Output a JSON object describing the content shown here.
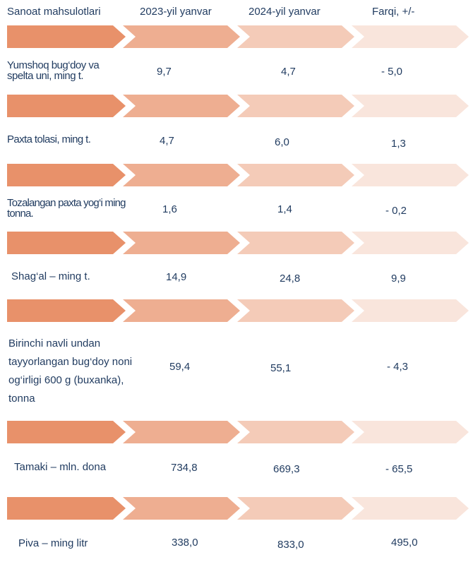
{
  "header": {
    "col1": "Sanoat mahsulotlari",
    "col2": "2023-yil yanvar",
    "col3": "2024-yil yanvar",
    "col4": "Farqi,  +/-"
  },
  "colors": {
    "arrow1": "#e8916a",
    "arrow2": "#eeae91",
    "arrow3": "#f4cbb8",
    "arrow4": "#f9e5dc"
  },
  "rows": [
    {
      "label": "Yumshoq bug‘doy va spelta uni, ming t.",
      "v2023": "9,7",
      "v2024": "4,7",
      "diff": "- 5,0"
    },
    {
      "label": "Paxta tolasi, ming t.",
      "v2023": "4,7",
      "v2024": "6,0",
      "diff": "1,3"
    },
    {
      "label": "Tozalangan paxta yog‘i ming tonna.",
      "v2023": "1,6",
      "v2024": "1,4",
      "diff": "- 0,2"
    },
    {
      "label": "Shag‘al – ming t.",
      "v2023": "14,9",
      "v2024": "24,8",
      "diff": "9,9"
    },
    {
      "label": "Birinchi navli undan tayyorlangan bug‘doy noni og‘irligi 600 g (buxanka), tonna",
      "v2023": "59,4",
      "v2024": "55,1",
      "diff": "- 4,3"
    },
    {
      "label": "Tamaki – mln. dona",
      "v2023": "734,8",
      "v2024": "669,3",
      "diff": "- 65,5"
    },
    {
      "label": "Piva – ming litr",
      "v2023": "338,0",
      "v2024": "833,0",
      "diff": "495,0"
    }
  ]
}
